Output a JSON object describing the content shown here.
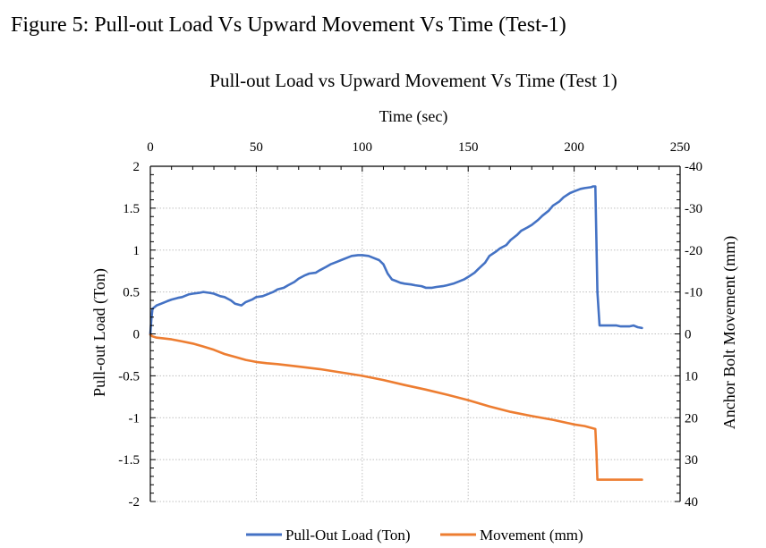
{
  "figure_caption": "Figure 5: Pull-out Load Vs Upward Movement Vs Time (Test-1)",
  "colors": {
    "load_series": "#4472C4",
    "movement_series": "#ED7D31",
    "gridline": "#BFBFBF",
    "axis": "#000000"
  },
  "chart_data": {
    "type": "line",
    "title": "Pull-out Load vs Upward Movement Vs Time (Test 1)",
    "xlabel": "Time (sec)",
    "ylabel": "Pull-out Load (Ton)",
    "y2label": "Anchor Bolt Movement (mm)",
    "xlim": [
      0,
      250
    ],
    "ylim": [
      -2,
      2
    ],
    "y2lim": [
      40,
      -40
    ],
    "y2_reversed": true,
    "x_ticks": [
      "0",
      "50",
      "100",
      "150",
      "200",
      "250"
    ],
    "y_ticks": [
      "2",
      "1.5",
      "1",
      "0.5",
      "0",
      "-0.5",
      "-1",
      "-1.5",
      "-2"
    ],
    "y2_ticks": [
      "-40",
      "-30",
      "-20",
      "-10",
      "0",
      "10",
      "20",
      "30",
      "40"
    ],
    "x_axis_position": "top",
    "grid": true,
    "legend_position": "bottom",
    "series": [
      {
        "name": "Pull-Out Load (Ton)",
        "axis": "left",
        "x": [
          0,
          0.5,
          1,
          3,
          5,
          8,
          10,
          13,
          15,
          18,
          20,
          23,
          25,
          28,
          30,
          33,
          35,
          38,
          40,
          43,
          45,
          48,
          50,
          53,
          55,
          58,
          60,
          63,
          65,
          68,
          70,
          73,
          75,
          78,
          80,
          83,
          85,
          88,
          90,
          93,
          95,
          98,
          100,
          103,
          105,
          108,
          110,
          112,
          114,
          116,
          118,
          120,
          123,
          125,
          128,
          130,
          133,
          135,
          138,
          140,
          143,
          145,
          148,
          150,
          153,
          155,
          158,
          160,
          163,
          165,
          168,
          170,
          173,
          175,
          178,
          180,
          183,
          185,
          188,
          190,
          193,
          195,
          198,
          200,
          203,
          205,
          208,
          209,
          210,
          211,
          212,
          214,
          216,
          218,
          220,
          222,
          224,
          226,
          228,
          230,
          232
        ],
        "y": [
          0,
          0.18,
          0.3,
          0.34,
          0.36,
          0.39,
          0.41,
          0.43,
          0.44,
          0.47,
          0.48,
          0.49,
          0.5,
          0.49,
          0.48,
          0.45,
          0.44,
          0.4,
          0.36,
          0.34,
          0.38,
          0.41,
          0.44,
          0.45,
          0.47,
          0.5,
          0.53,
          0.55,
          0.58,
          0.62,
          0.66,
          0.7,
          0.72,
          0.73,
          0.76,
          0.8,
          0.83,
          0.86,
          0.88,
          0.91,
          0.93,
          0.94,
          0.94,
          0.93,
          0.91,
          0.88,
          0.83,
          0.72,
          0.65,
          0.63,
          0.61,
          0.6,
          0.59,
          0.58,
          0.57,
          0.55,
          0.55,
          0.56,
          0.57,
          0.58,
          0.6,
          0.62,
          0.65,
          0.68,
          0.73,
          0.78,
          0.85,
          0.93,
          0.98,
          1.02,
          1.06,
          1.12,
          1.18,
          1.23,
          1.27,
          1.3,
          1.36,
          1.41,
          1.47,
          1.53,
          1.58,
          1.63,
          1.68,
          1.7,
          1.73,
          1.74,
          1.75,
          1.76,
          1.76,
          0.5,
          0.1,
          0.1,
          0.1,
          0.1,
          0.1,
          0.09,
          0.09,
          0.09,
          0.1,
          0.08,
          0.07
        ]
      },
      {
        "name": "Movement (mm)",
        "axis": "right",
        "x": [
          0,
          1,
          3,
          5,
          10,
          15,
          20,
          25,
          30,
          35,
          40,
          45,
          50,
          55,
          60,
          70,
          80,
          90,
          100,
          110,
          120,
          130,
          140,
          150,
          160,
          170,
          180,
          190,
          200,
          205,
          210,
          210.5,
          211,
          212,
          215,
          220,
          225,
          230,
          232
        ],
        "y": [
          0.2,
          0.6,
          0.9,
          1.0,
          1.3,
          1.8,
          2.3,
          3.0,
          3.8,
          4.8,
          5.5,
          6.2,
          6.7,
          7.0,
          7.2,
          7.8,
          8.4,
          9.2,
          10.0,
          11.0,
          12.2,
          13.3,
          14.5,
          15.8,
          17.3,
          18.6,
          19.6,
          20.5,
          21.6,
          22.0,
          22.7,
          28.0,
          34.8,
          34.8,
          34.8,
          34.8,
          34.8,
          34.8,
          34.8
        ]
      }
    ]
  }
}
